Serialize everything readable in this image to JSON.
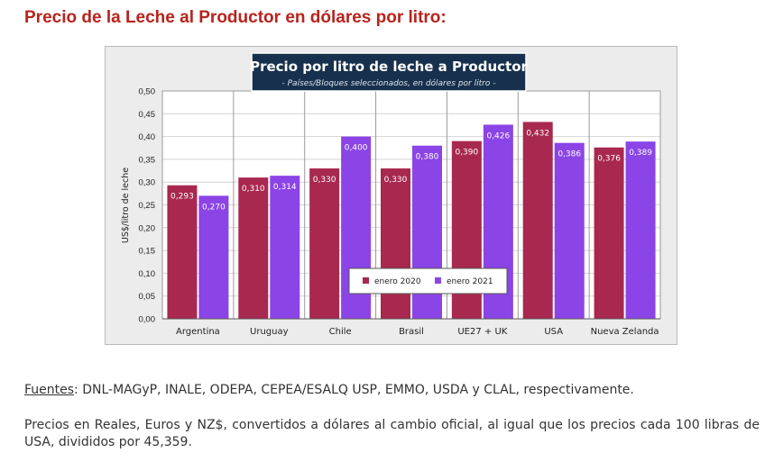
{
  "page": {
    "heading": "Precio de la Leche al Productor en dólares por litro:",
    "sources_label": "Fuentes",
    "sources_text": ": DNL-MAGyP, INALE, ODEPA, CEPEA/ESALQ USP, EMMO, USDA y CLAL, respectivamente.",
    "note": "Precios en Reales, Euros y NZ$, convertidos a dólares al cambio oficial, al igual que los precios cada 100 libras de USA, divididos por 45,359."
  },
  "colors": {
    "series_2020": "#a8284f",
    "series_2021": "#8b44e6",
    "title_bg": "#17304d",
    "heading": "#b8231c"
  },
  "chart_data": {
    "type": "bar",
    "title": "Precio por litro de leche a Productor",
    "subtitle": "- Países/Bloques seleccionados, en dólares por litro -",
    "xlabel": "",
    "ylabel": "US$/litro de leche",
    "ylim": [
      0,
      0.5
    ],
    "yticks": [
      "0,00",
      "0,05",
      "0,10",
      "0,15",
      "0,20",
      "0,25",
      "0,30",
      "0,35",
      "0,40",
      "0,45",
      "0,50"
    ],
    "categories": [
      "Argentina",
      "Uruguay",
      "Chile",
      "Brasil",
      "UE27 + UK",
      "USA",
      "Nueva Zelanda"
    ],
    "series": [
      {
        "name": "enero 2020",
        "values": [
          0.293,
          0.31,
          0.33,
          0.33,
          0.39,
          0.432,
          0.376
        ],
        "labels": [
          "0,293",
          "0,310",
          "0,330",
          "0,330",
          "0,390",
          "0,432",
          "0,376"
        ]
      },
      {
        "name": "enero 2021",
        "values": [
          0.27,
          0.314,
          0.4,
          0.38,
          0.426,
          0.386,
          0.389
        ],
        "labels": [
          "0,270",
          "0,314",
          "0,400",
          "0,380",
          "0,426",
          "0,386",
          "0,389"
        ]
      }
    ],
    "grid": true,
    "legend_position": "lower-right"
  }
}
